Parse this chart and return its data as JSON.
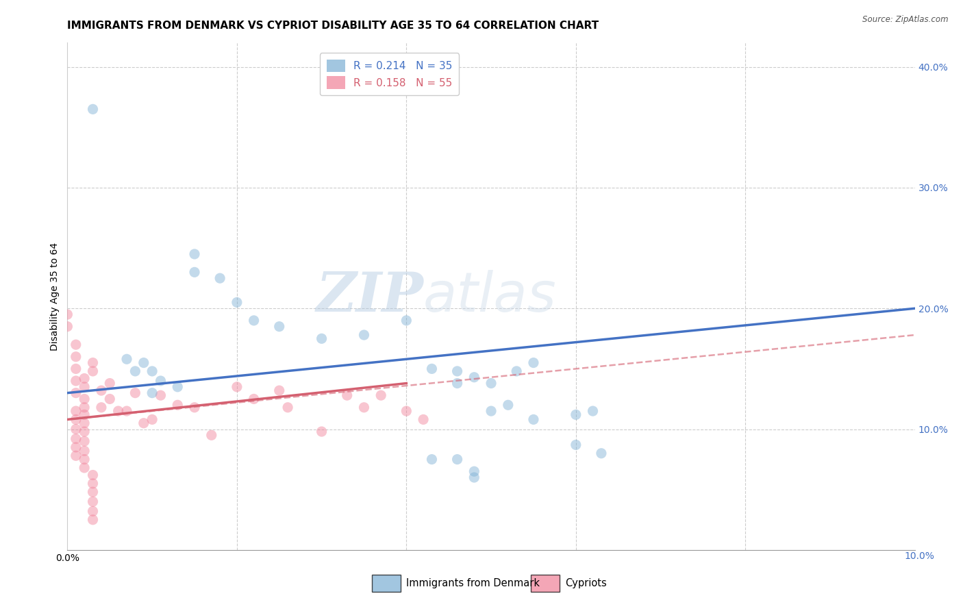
{
  "title": "IMMIGRANTS FROM DENMARK VS CYPRIOT DISABILITY AGE 35 TO 64 CORRELATION CHART",
  "source": "Source: ZipAtlas.com",
  "ylabel": "Disability Age 35 to 64",
  "xlim": [
    0.0,
    0.1
  ],
  "ylim": [
    0.0,
    0.42
  ],
  "denmark_scatter": [
    [
      0.003,
      0.365
    ],
    [
      0.015,
      0.245
    ],
    [
      0.015,
      0.23
    ],
    [
      0.018,
      0.225
    ],
    [
      0.02,
      0.205
    ],
    [
      0.022,
      0.19
    ],
    [
      0.025,
      0.185
    ],
    [
      0.03,
      0.175
    ],
    [
      0.035,
      0.178
    ],
    [
      0.04,
      0.19
    ],
    [
      0.043,
      0.15
    ],
    [
      0.046,
      0.138
    ],
    [
      0.046,
      0.148
    ],
    [
      0.048,
      0.143
    ],
    [
      0.05,
      0.138
    ],
    [
      0.053,
      0.148
    ],
    [
      0.055,
      0.155
    ],
    [
      0.007,
      0.158
    ],
    [
      0.008,
      0.148
    ],
    [
      0.009,
      0.155
    ],
    [
      0.01,
      0.148
    ],
    [
      0.01,
      0.13
    ],
    [
      0.011,
      0.14
    ],
    [
      0.013,
      0.135
    ],
    [
      0.05,
      0.115
    ],
    [
      0.052,
      0.12
    ],
    [
      0.055,
      0.108
    ],
    [
      0.06,
      0.112
    ],
    [
      0.063,
      0.08
    ],
    [
      0.043,
      0.075
    ],
    [
      0.046,
      0.075
    ],
    [
      0.048,
      0.065
    ],
    [
      0.048,
      0.06
    ],
    [
      0.06,
      0.087
    ],
    [
      0.062,
      0.115
    ]
  ],
  "cypriot_scatter": [
    [
      0.0,
      0.195
    ],
    [
      0.0,
      0.185
    ],
    [
      0.001,
      0.17
    ],
    [
      0.001,
      0.16
    ],
    [
      0.001,
      0.15
    ],
    [
      0.001,
      0.14
    ],
    [
      0.001,
      0.13
    ],
    [
      0.002,
      0.125
    ],
    [
      0.002,
      0.118
    ],
    [
      0.002,
      0.112
    ],
    [
      0.002,
      0.105
    ],
    [
      0.002,
      0.098
    ],
    [
      0.002,
      0.09
    ],
    [
      0.002,
      0.082
    ],
    [
      0.002,
      0.075
    ],
    [
      0.002,
      0.068
    ],
    [
      0.003,
      0.062
    ],
    [
      0.003,
      0.055
    ],
    [
      0.003,
      0.048
    ],
    [
      0.003,
      0.04
    ],
    [
      0.003,
      0.032
    ],
    [
      0.003,
      0.025
    ],
    [
      0.001,
      0.115
    ],
    [
      0.001,
      0.108
    ],
    [
      0.001,
      0.1
    ],
    [
      0.001,
      0.092
    ],
    [
      0.001,
      0.085
    ],
    [
      0.001,
      0.078
    ],
    [
      0.002,
      0.142
    ],
    [
      0.002,
      0.135
    ],
    [
      0.003,
      0.155
    ],
    [
      0.003,
      0.148
    ],
    [
      0.004,
      0.132
    ],
    [
      0.004,
      0.118
    ],
    [
      0.005,
      0.138
    ],
    [
      0.005,
      0.125
    ],
    [
      0.006,
      0.115
    ],
    [
      0.007,
      0.115
    ],
    [
      0.008,
      0.13
    ],
    [
      0.009,
      0.105
    ],
    [
      0.01,
      0.108
    ],
    [
      0.011,
      0.128
    ],
    [
      0.013,
      0.12
    ],
    [
      0.015,
      0.118
    ],
    [
      0.017,
      0.095
    ],
    [
      0.02,
      0.135
    ],
    [
      0.022,
      0.125
    ],
    [
      0.025,
      0.132
    ],
    [
      0.026,
      0.118
    ],
    [
      0.03,
      0.098
    ],
    [
      0.033,
      0.128
    ],
    [
      0.035,
      0.118
    ],
    [
      0.037,
      0.128
    ],
    [
      0.04,
      0.115
    ],
    [
      0.042,
      0.108
    ]
  ],
  "denmark_line": {
    "x": [
      0.0,
      0.1
    ],
    "y": [
      0.13,
      0.2
    ]
  },
  "cypriot_line_solid": {
    "x": [
      0.0,
      0.04
    ],
    "y": [
      0.108,
      0.138
    ]
  },
  "cypriot_line_dashed": {
    "x": [
      0.0,
      0.1
    ],
    "y": [
      0.108,
      0.178
    ]
  },
  "watermark_zip": "ZIP",
  "watermark_atlas": "atlas",
  "denmark_color": "#7bafd4",
  "cypriot_color": "#f08098",
  "denmark_line_color": "#4472c4",
  "cypriot_line_color": "#d46070",
  "background_color": "#ffffff",
  "grid_color": "#cccccc",
  "title_fontsize": 11,
  "axis_label_fontsize": 10,
  "tick_fontsize": 10,
  "scatter_size": 120,
  "scatter_alpha": 0.45,
  "legend_blue_label": "R = 0.214   N = 35",
  "legend_pink_label": "R = 0.158   N = 55"
}
